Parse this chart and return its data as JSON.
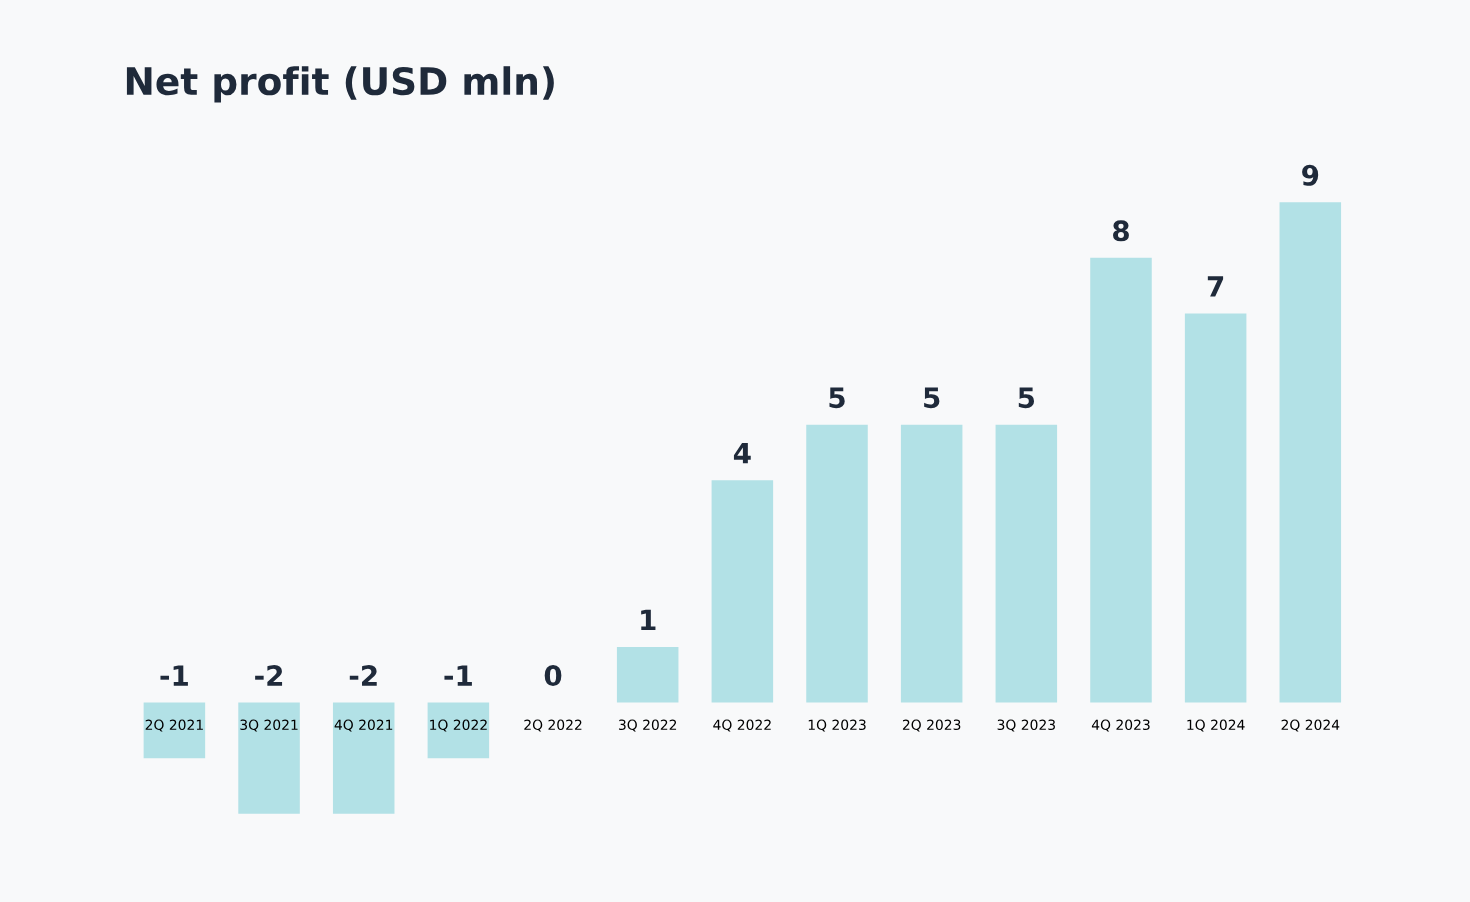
{
  "chart_data": {
    "type": "bar",
    "title": "Net profit (USD mln)",
    "categories": [
      "2Q 2021",
      "3Q 2021",
      "4Q 2021",
      "1Q 2022",
      "2Q 2022",
      "3Q 2022",
      "4Q 2022",
      "1Q 2023",
      "2Q 2023",
      "3Q 2023",
      "4Q 2023",
      "1Q 2024",
      "2Q 2024"
    ],
    "values": [
      -1,
      -2,
      -2,
      -1,
      0,
      1,
      4,
      5,
      5,
      5,
      8,
      7,
      9
    ],
    "color": "#b2e1e6",
    "data_labels": true,
    "grid": false,
    "legend": false
  }
}
